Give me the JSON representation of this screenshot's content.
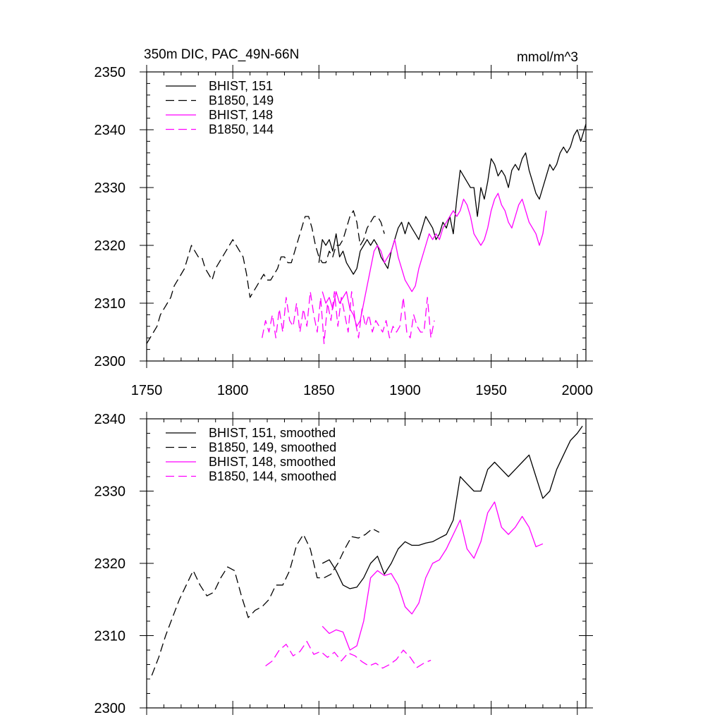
{
  "chart_data": [
    {
      "type": "line",
      "title": "350m DIC, PAC_49N-66N",
      "units": "mmol/m^3",
      "xlim": [
        1750,
        2005
      ],
      "ylim": [
        2300,
        2350
      ],
      "x_ticks": [
        1750,
        1800,
        1850,
        1900,
        1950,
        2000
      ],
      "y_ticks": [
        2300,
        2310,
        2320,
        2330,
        2340,
        2350
      ],
      "grid": false,
      "legend_position": "top-left",
      "series": [
        {
          "name": "BHIST, 151",
          "color": "#000000",
          "dash": "solid",
          "x": [
            1850,
            1852,
            1854,
            1856,
            1858,
            1860,
            1862,
            1864,
            1866,
            1868,
            1870,
            1872,
            1874,
            1876,
            1878,
            1880,
            1882,
            1884,
            1886,
            1888,
            1890,
            1892,
            1894,
            1896,
            1898,
            1900,
            1902,
            1904,
            1906,
            1908,
            1910,
            1912,
            1914,
            1916,
            1918,
            1920,
            1922,
            1924,
            1926,
            1928,
            1930,
            1932,
            1934,
            1936,
            1938,
            1940,
            1942,
            1944,
            1946,
            1948,
            1950,
            1952,
            1954,
            1956,
            1958,
            1960,
            1962,
            1964,
            1966,
            1968,
            1970,
            1972,
            1974,
            1976,
            1978,
            1980,
            1982,
            1984,
            1986,
            1988,
            1990,
            1992,
            1994,
            1996,
            1998,
            2000,
            2002,
            2004,
            2005
          ],
          "y": [
            2317,
            2321,
            2320,
            2321,
            2319,
            2322,
            2318,
            2319,
            2317,
            2316,
            2315,
            2316,
            2319,
            2320,
            2321,
            2320,
            2321,
            2320,
            2318,
            2317,
            2316,
            2319,
            2321,
            2323,
            2324,
            2322,
            2324,
            2323,
            2322,
            2321,
            2323,
            2325,
            2324,
            2323,
            2321,
            2322,
            2324,
            2323,
            2325,
            2322,
            2328,
            2333,
            2332,
            2331,
            2330,
            2330,
            2325,
            2330,
            2328,
            2331,
            2335,
            2334,
            2332,
            2333,
            2332,
            2330,
            2333,
            2334,
            2333,
            2335,
            2336,
            2333,
            2331,
            2329,
            2328,
            2330,
            2332,
            2334,
            2333,
            2334,
            2336,
            2337,
            2336,
            2337,
            2339,
            2340,
            2338,
            2340,
            2341
          ]
        },
        {
          "name": "B1850, 149",
          "color": "#000000",
          "dash": "dashed",
          "x": [
            1750,
            1752,
            1754,
            1756,
            1758,
            1760,
            1762,
            1764,
            1766,
            1768,
            1770,
            1772,
            1774,
            1776,
            1778,
            1780,
            1782,
            1784,
            1786,
            1788,
            1790,
            1792,
            1794,
            1796,
            1798,
            1800,
            1802,
            1804,
            1806,
            1808,
            1810,
            1812,
            1814,
            1816,
            1818,
            1820,
            1822,
            1824,
            1826,
            1828,
            1830,
            1832,
            1834,
            1836,
            1838,
            1840,
            1842,
            1844,
            1846,
            1848,
            1850,
            1852,
            1854,
            1856,
            1858,
            1860,
            1862,
            1864,
            1866,
            1868,
            1870,
            1872,
            1874,
            1876,
            1878,
            1880,
            1882,
            1884,
            1886,
            1888
          ],
          "y": [
            2303,
            2304,
            2305,
            2306,
            2308,
            2309,
            2310,
            2311,
            2313,
            2314,
            2315,
            2316,
            2318,
            2320,
            2319,
            2318,
            2318,
            2316,
            2315,
            2314,
            2316,
            2317,
            2318,
            2319,
            2320,
            2321,
            2320,
            2319,
            2318,
            2315,
            2311,
            2312,
            2313,
            2314,
            2315,
            2314,
            2314,
            2315,
            2316,
            2318,
            2318,
            2317,
            2317,
            2319,
            2321,
            2323,
            2325,
            2325,
            2323,
            2320,
            2318,
            2317,
            2317,
            2319,
            2318,
            2320,
            2320,
            2321,
            2323,
            2325,
            2326,
            2324,
            2320,
            2321,
            2323,
            2324,
            2325,
            2325,
            2324,
            2322
          ]
        },
        {
          "name": "BHIST, 148",
          "color": "#ff00ff",
          "dash": "solid",
          "x": [
            1852,
            1854,
            1856,
            1858,
            1860,
            1862,
            1864,
            1866,
            1868,
            1870,
            1872,
            1874,
            1876,
            1878,
            1880,
            1882,
            1884,
            1886,
            1888,
            1890,
            1892,
            1894,
            1896,
            1898,
            1900,
            1902,
            1904,
            1906,
            1908,
            1910,
            1912,
            1914,
            1916,
            1918,
            1920,
            1922,
            1924,
            1926,
            1928,
            1930,
            1932,
            1934,
            1936,
            1938,
            1940,
            1942,
            1944,
            1946,
            1948,
            1950,
            1952,
            1954,
            1956,
            1958,
            1960,
            1962,
            1964,
            1966,
            1968,
            1970,
            1972,
            1974,
            1976,
            1978,
            1980,
            1982
          ],
          "y": [
            2312,
            2310,
            2311,
            2309,
            2312,
            2310,
            2311,
            2312,
            2309,
            2308,
            2306,
            2307,
            2310,
            2313,
            2316,
            2319,
            2320,
            2319,
            2317,
            2318,
            2319,
            2321,
            2318,
            2316,
            2314,
            2313,
            2312,
            2313,
            2316,
            2318,
            2320,
            2322,
            2321,
            2322,
            2321,
            2323,
            2324,
            2325,
            2326,
            2325,
            2326,
            2328,
            2327,
            2325,
            2322,
            2321,
            2320,
            2321,
            2323,
            2326,
            2328,
            2329,
            2327,
            2326,
            2324,
            2323,
            2325,
            2327,
            2328,
            2326,
            2324,
            2323,
            2322,
            2320,
            2322,
            2326
          ]
        },
        {
          "name": "B1850, 144",
          "color": "#ff00ff",
          "dash": "dashed",
          "x": [
            1817,
            1819,
            1821,
            1823,
            1825,
            1827,
            1829,
            1831,
            1833,
            1835,
            1837,
            1839,
            1841,
            1843,
            1845,
            1847,
            1849,
            1851,
            1853,
            1855,
            1857,
            1859,
            1861,
            1863,
            1865,
            1867,
            1869,
            1871,
            1873,
            1875,
            1877,
            1879,
            1881,
            1883,
            1885,
            1887,
            1889,
            1891,
            1893,
            1895,
            1897,
            1899,
            1901,
            1903,
            1905,
            1907,
            1909,
            1911,
            1913,
            1915,
            1917
          ],
          "y": [
            2304,
            2307,
            2305,
            2308,
            2304,
            2309,
            2305,
            2311,
            2307,
            2306,
            2310,
            2305,
            2309,
            2306,
            2312,
            2308,
            2305,
            2311,
            2303,
            2310,
            2307,
            2312,
            2306,
            2311,
            2308,
            2305,
            2312,
            2307,
            2304,
            2309,
            2306,
            2308,
            2305,
            2307,
            2306,
            2305,
            2307,
            2304,
            2306,
            2305,
            2306,
            2311,
            2305,
            2304,
            2308,
            2306,
            2305,
            2305,
            2311,
            2304,
            2307
          ]
        }
      ]
    },
    {
      "type": "line",
      "xlim": [
        1750,
        2005
      ],
      "ylim": [
        2300,
        2340
      ],
      "y_ticks": [
        2300,
        2310,
        2320,
        2330,
        2340
      ],
      "grid": false,
      "legend_position": "top-left",
      "series": [
        {
          "name": "BHIST, 151, smoothed",
          "color": "#000000",
          "dash": "solid",
          "x": [
            1852,
            1856,
            1860,
            1864,
            1868,
            1872,
            1876,
            1880,
            1884,
            1888,
            1892,
            1896,
            1900,
            1904,
            1908,
            1912,
            1916,
            1920,
            1924,
            1928,
            1932,
            1936,
            1940,
            1944,
            1948,
            1952,
            1956,
            1960,
            1964,
            1968,
            1972,
            1976,
            1980,
            1984,
            1988,
            1992,
            1996,
            2000,
            2003
          ],
          "y": [
            2320,
            2320.5,
            2319,
            2317,
            2316.5,
            2316.7,
            2318,
            2320,
            2321,
            2318.5,
            2320,
            2322,
            2323,
            2322.5,
            2322.5,
            2322.8,
            2323,
            2323.5,
            2324,
            2326,
            2332,
            2331,
            2330,
            2330,
            2333,
            2334,
            2333,
            2332,
            2333,
            2334,
            2335,
            2332,
            2329,
            2330,
            2333,
            2335,
            2337,
            2338,
            2339
          ]
        },
        {
          "name": "B1850, 149, smoothed",
          "color": "#000000",
          "dash": "dashed",
          "x": [
            1753,
            1757,
            1761,
            1765,
            1769,
            1773,
            1777,
            1781,
            1785,
            1789,
            1793,
            1797,
            1801,
            1805,
            1809,
            1813,
            1817,
            1821,
            1825,
            1829,
            1833,
            1837,
            1841,
            1845,
            1849,
            1853,
            1857,
            1861,
            1865,
            1869,
            1873,
            1877,
            1881,
            1885
          ],
          "y": [
            2304.5,
            2307,
            2310,
            2312.5,
            2315,
            2317,
            2319,
            2317,
            2315.5,
            2316,
            2318,
            2319.5,
            2319,
            2315.5,
            2312.5,
            2313.5,
            2314,
            2315,
            2317,
            2317,
            2319,
            2322.5,
            2324,
            2322,
            2318,
            2318,
            2318.5,
            2320,
            2322,
            2323.7,
            2323.5,
            2324,
            2324.8,
            2324.3
          ]
        },
        {
          "name": "BHIST, 148, smoothed",
          "color": "#ff00ff",
          "dash": "solid",
          "x": [
            1852,
            1856,
            1860,
            1864,
            1868,
            1872,
            1876,
            1880,
            1884,
            1888,
            1892,
            1896,
            1900,
            1904,
            1908,
            1912,
            1916,
            1920,
            1924,
            1928,
            1932,
            1936,
            1940,
            1944,
            1948,
            1952,
            1956,
            1960,
            1964,
            1968,
            1972,
            1976,
            1980
          ],
          "y": [
            2311.3,
            2310.3,
            2310.8,
            2310.5,
            2308,
            2308.6,
            2312,
            2318,
            2319,
            2318.3,
            2318.6,
            2317,
            2314,
            2313,
            2314.5,
            2318,
            2320,
            2320.5,
            2322,
            2324,
            2326,
            2322,
            2320.7,
            2323,
            2327,
            2328.5,
            2325,
            2324,
            2325,
            2326.5,
            2325,
            2322.3,
            2322.7
          ]
        },
        {
          "name": "B1850, 144, smoothed",
          "color": "#ff00ff",
          "dash": "dashed",
          "x": [
            1819,
            1823,
            1827,
            1831,
            1835,
            1839,
            1843,
            1847,
            1851,
            1855,
            1859,
            1863,
            1867,
            1871,
            1875,
            1879,
            1883,
            1887,
            1891,
            1895,
            1899,
            1903,
            1907,
            1911,
            1915
          ],
          "y": [
            2305.8,
            2306.5,
            2308,
            2308.8,
            2307.2,
            2307.8,
            2309.2,
            2307.4,
            2307.8,
            2307,
            2307.7,
            2306.5,
            2307.6,
            2307.2,
            2306.4,
            2305.8,
            2306.2,
            2305.5,
            2306,
            2306.7,
            2308,
            2307,
            2305.6,
            2306.2,
            2306.6
          ]
        }
      ]
    }
  ]
}
